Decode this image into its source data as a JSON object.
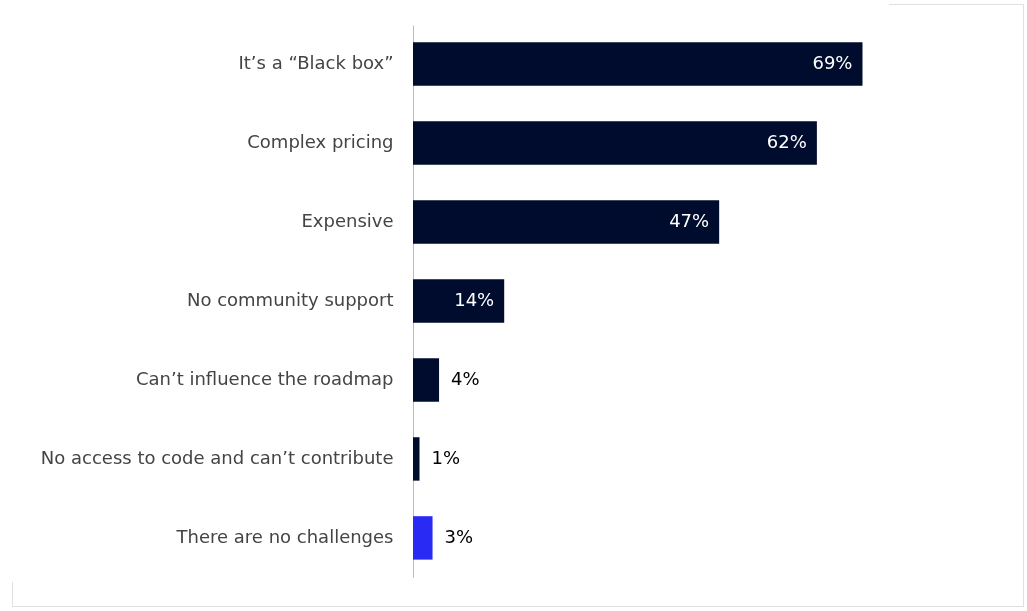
{
  "chart_data": {
    "type": "bar",
    "orientation": "horizontal",
    "value_labels": [
      "69%",
      "62%",
      "47%",
      "14%",
      "4%",
      "1%",
      "3%"
    ],
    "categories": [
      "It’s a “Black box”",
      "Complex pricing",
      "Expensive",
      "No community support",
      "Can’t influence the roadmap",
      "No access to code and can’t contribute",
      "There are no challenges"
    ],
    "values": [
      69,
      62,
      47,
      14,
      4,
      1,
      3
    ],
    "colors": [
      "#000c2e",
      "#000c2e",
      "#000c2e",
      "#000c2e",
      "#000c2e",
      "#000c2e",
      "#2a2af5"
    ]
  }
}
